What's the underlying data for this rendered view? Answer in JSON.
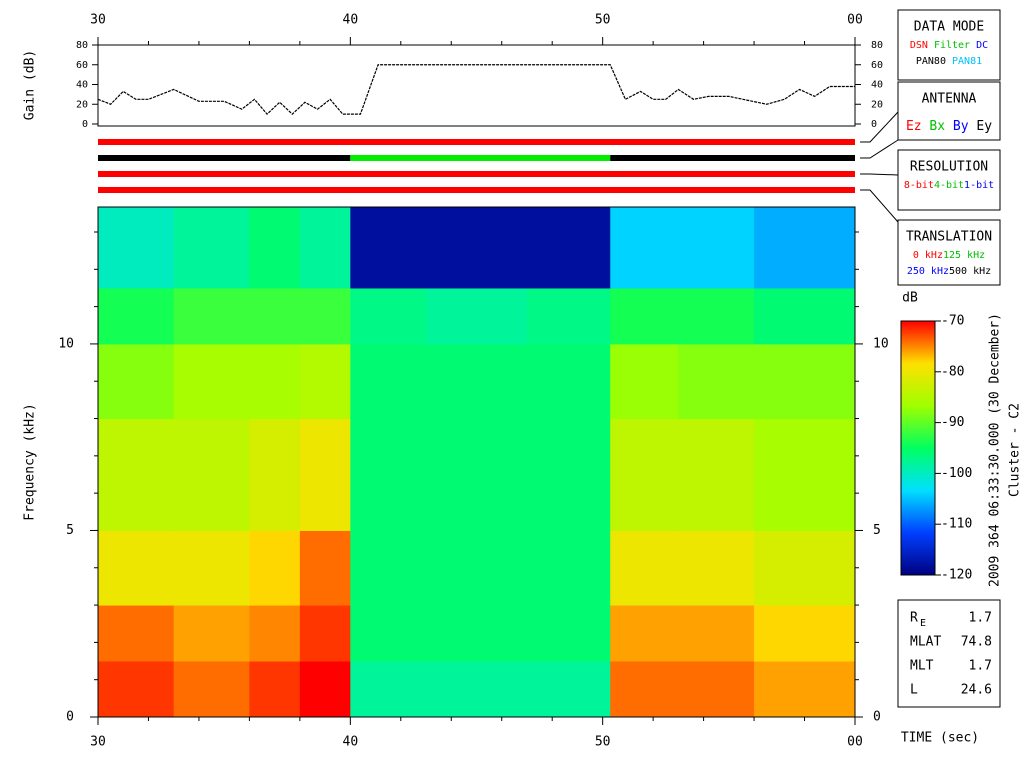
{
  "chart_data": [
    {
      "type": "line",
      "ylabel": "Gain (dB)",
      "xlim": [
        30,
        60
      ],
      "xticks": [
        30,
        40,
        50,
        {
          "value": 60,
          "label": "00"
        }
      ],
      "xminorticks": [
        32,
        34,
        36,
        38,
        42,
        44,
        46,
        48,
        52,
        54,
        56,
        58
      ],
      "ylim": [
        0,
        80
      ],
      "yticks": [
        0,
        20,
        40,
        60,
        80
      ],
      "color": "#000000",
      "x": [
        30,
        30.5,
        31,
        31.5,
        32,
        33,
        34,
        35,
        35.7,
        36.2,
        36.7,
        37.2,
        37.7,
        38.2,
        38.7,
        39.2,
        39.7,
        40.4,
        41.1,
        50.3,
        50.9,
        51.5,
        52,
        52.5,
        53,
        53.6,
        54.2,
        55,
        56.5,
        57.2,
        57.8,
        58.4,
        59,
        60
      ],
      "values": [
        25,
        20,
        33,
        25,
        25,
        35,
        23,
        23,
        15,
        25,
        10,
        22,
        10,
        22,
        15,
        25,
        10,
        10,
        60,
        60,
        25,
        33,
        25,
        25,
        35,
        25,
        28,
        28,
        20,
        25,
        35,
        28,
        38,
        38
      ]
    },
    {
      "type": "heatmap",
      "xlabel": "TIME (sec)",
      "ylabel": "Frequency (kHz)",
      "xlim": [
        30,
        60
      ],
      "xticks": [
        30,
        40,
        50,
        {
          "value": 60,
          "label": "00"
        }
      ],
      "xminorticks": [
        32,
        34,
        36,
        38,
        42,
        44,
        46,
        48,
        52,
        54,
        56,
        58
      ],
      "ylim": [
        0,
        13.67
      ],
      "yticks": [
        0,
        5,
        10
      ],
      "yminorticks": [
        1,
        2,
        3,
        4,
        6,
        7,
        8,
        9,
        11,
        12,
        13
      ],
      "x_edges": [
        30,
        33,
        36,
        38,
        40,
        43,
        47,
        50.3,
        53,
        56,
        60
      ],
      "y_edges": [
        0,
        1.5,
        3,
        5,
        8,
        10,
        11.5,
        13.67
      ],
      "z": [
        [
          -72,
          -74,
          -72,
          -70,
          -98,
          -98,
          -98,
          -74,
          -74,
          -76
        ],
        [
          -74,
          -76,
          -75,
          -72,
          -96,
          -96,
          -96,
          -76,
          -76,
          -78
        ],
        [
          -80,
          -80,
          -78,
          -74,
          -96,
          -96,
          -96,
          -80,
          -80,
          -82
        ],
        [
          -84,
          -84,
          -82,
          -80,
          -96,
          -96,
          -96,
          -84,
          -84,
          -86
        ],
        [
          -88,
          -86,
          -86,
          -85,
          -96,
          -96,
          -96,
          -87,
          -88,
          -88
        ],
        [
          -94,
          -92,
          -92,
          -92,
          -97,
          -98,
          -97,
          -94,
          -94,
          -96
        ],
        [
          -100,
          -98,
          -96,
          -98,
          -118,
          -118,
          -118,
          -104,
          -104,
          -106
        ]
      ],
      "colorbar_label": "dB",
      "clim": [
        -120,
        -70
      ],
      "cticks": [
        -70,
        -80,
        -90,
        -100,
        -110,
        -120
      ],
      "colormap": [
        "#000080",
        "#0040ff",
        "#00e0ff",
        "#00ff60",
        "#a0ff00",
        "#ffe000",
        "#ff0000"
      ]
    }
  ],
  "status_bars": [
    [
      {
        "start": 30,
        "end": 60,
        "color": "#ff0000"
      }
    ],
    [
      {
        "start": 30,
        "end": 40,
        "color": "#000000"
      },
      {
        "start": 40,
        "end": 50.3,
        "color": "#00ee00"
      },
      {
        "start": 50.3,
        "end": 60,
        "color": "#000000"
      }
    ],
    [
      {
        "start": 30,
        "end": 60,
        "color": "#ff0000"
      }
    ],
    [
      {
        "start": 30,
        "end": 60,
        "color": "#ff0000"
      }
    ]
  ],
  "panels": [
    {
      "title": "DATA MODE",
      "rows": [
        [
          {
            "text": "DSN",
            "color": "#ff0000"
          },
          {
            "text": "Filter",
            "color": "#00c000"
          },
          {
            "text": "DC",
            "color": "#0000ff"
          }
        ],
        [
          {
            "text": "PAN80",
            "color": "#000000"
          },
          {
            "text": "PAN81",
            "color": "#00c0ff"
          }
        ]
      ]
    },
    {
      "title": "ANTENNA",
      "rows": [
        [
          {
            "text": "Ez",
            "color": "#ff0000"
          },
          {
            "text": "Bx",
            "color": "#00c000"
          },
          {
            "text": "By",
            "color": "#0000ff"
          },
          {
            "text": "Ey",
            "color": "#000000"
          }
        ]
      ]
    },
    {
      "title": "RESOLUTION",
      "rows": [
        [
          {
            "text": "8-bit",
            "color": "#ff0000"
          },
          {
            "text": "4-bit",
            "color": "#00c000"
          },
          {
            "text": "1-bit",
            "color": "#0000ff"
          }
        ]
      ]
    },
    {
      "title": "TRANSLATION",
      "rows": [
        [
          {
            "text": "0 kHz",
            "color": "#ff0000"
          },
          {
            "text": "125 kHz",
            "color": "#00c000"
          }
        ],
        [
          {
            "text": "250 kHz",
            "color": "#0000ff"
          },
          {
            "text": "500 kHz",
            "color": "#000000"
          }
        ]
      ]
    }
  ],
  "info": [
    {
      "label": "R",
      "sub": "E",
      "value": 1.7
    },
    {
      "label": "MLAT",
      "value": 74.8
    },
    {
      "label": "MLT",
      "value": 1.7
    },
    {
      "label": "L",
      "value": 24.6
    }
  ],
  "caption": [
    "2009 364 06:33:30.000 (30 December)",
    "Cluster - C2"
  ]
}
